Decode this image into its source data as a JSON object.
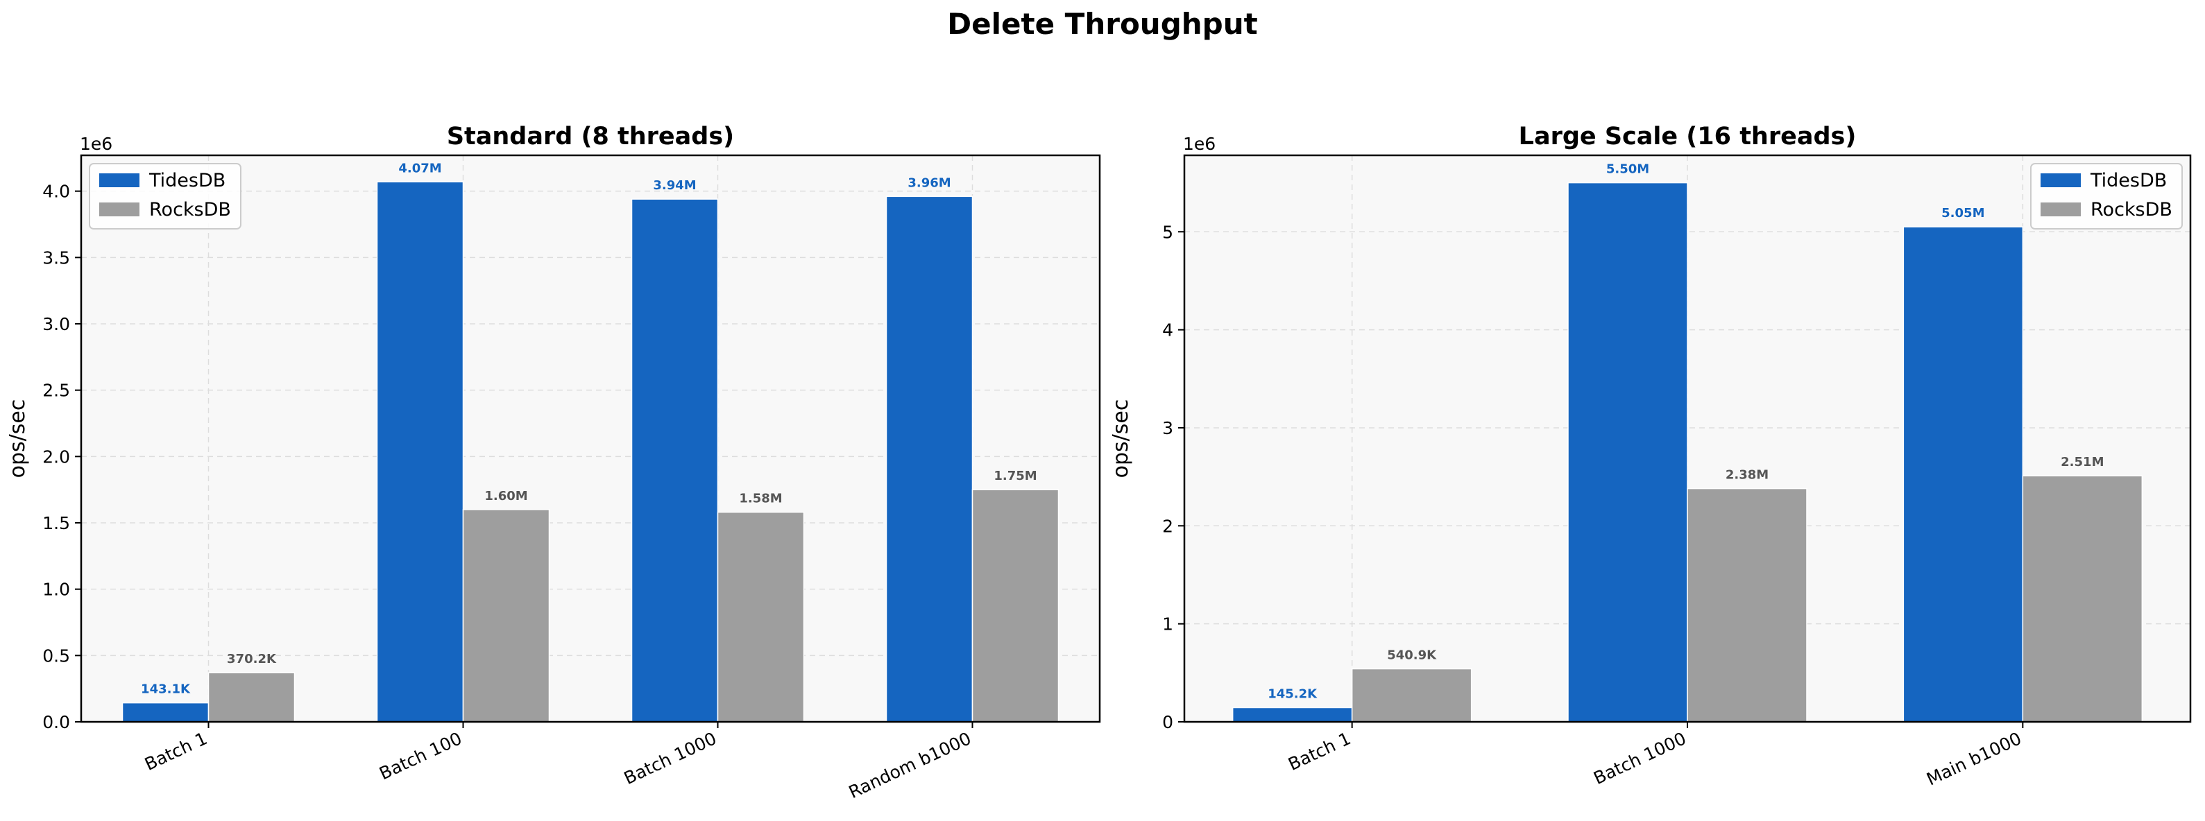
{
  "figure": {
    "title": "Delete Throughput"
  },
  "colors": {
    "tidesdb": "#1565C0",
    "rocksdb": "#9E9E9E",
    "plot_bg": "#F8F8F8",
    "grid": "#DDDDDD"
  },
  "chart_data": [
    {
      "type": "bar",
      "title": "Standard (8 threads)",
      "ylabel": "ops/sec",
      "xlabel": "",
      "y_multiplier_label": "1e6",
      "ylim": [
        0,
        4270000
      ],
      "yticks": [
        0,
        500000,
        1000000,
        1500000,
        2000000,
        2500000,
        3000000,
        3500000,
        4000000
      ],
      "ytick_labels": [
        "0.0",
        "0.5",
        "1.0",
        "1.5",
        "2.0",
        "2.5",
        "3.0",
        "3.5",
        "4.0"
      ],
      "categories": [
        "Batch 1",
        "Batch 100",
        "Batch 1000",
        "Random b1000"
      ],
      "legend_position": "top-left",
      "grid": true,
      "series": [
        {
          "name": "TidesDB",
          "color": "#1565C0",
          "values": [
            143100,
            4070000,
            3940000,
            3960000
          ],
          "labels": [
            "143.1K",
            "4.07M",
            "3.94M",
            "3.96M"
          ]
        },
        {
          "name": "RocksDB",
          "color": "#9E9E9E",
          "values": [
            370200,
            1600000,
            1580000,
            1750000
          ],
          "labels": [
            "370.2K",
            "1.60M",
            "1.58M",
            "1.75M"
          ]
        }
      ]
    },
    {
      "type": "bar",
      "title": "Large Scale (16 threads)",
      "ylabel": "ops/sec",
      "xlabel": "",
      "y_multiplier_label": "1e6",
      "ylim": [
        0,
        5780000
      ],
      "yticks": [
        0,
        1000000,
        2000000,
        3000000,
        4000000,
        5000000
      ],
      "ytick_labels": [
        "0",
        "1",
        "2",
        "3",
        "4",
        "5"
      ],
      "categories": [
        "Batch 1",
        "Batch 1000",
        "Main b1000"
      ],
      "legend_position": "top-right",
      "grid": true,
      "series": [
        {
          "name": "TidesDB",
          "color": "#1565C0",
          "values": [
            145200,
            5500000,
            5050000
          ],
          "labels": [
            "145.2K",
            "5.50M",
            "5.05M"
          ]
        },
        {
          "name": "RocksDB",
          "color": "#9E9E9E",
          "values": [
            540900,
            2380000,
            2510000
          ],
          "labels": [
            "540.9K",
            "2.38M",
            "2.51M"
          ]
        }
      ]
    }
  ]
}
